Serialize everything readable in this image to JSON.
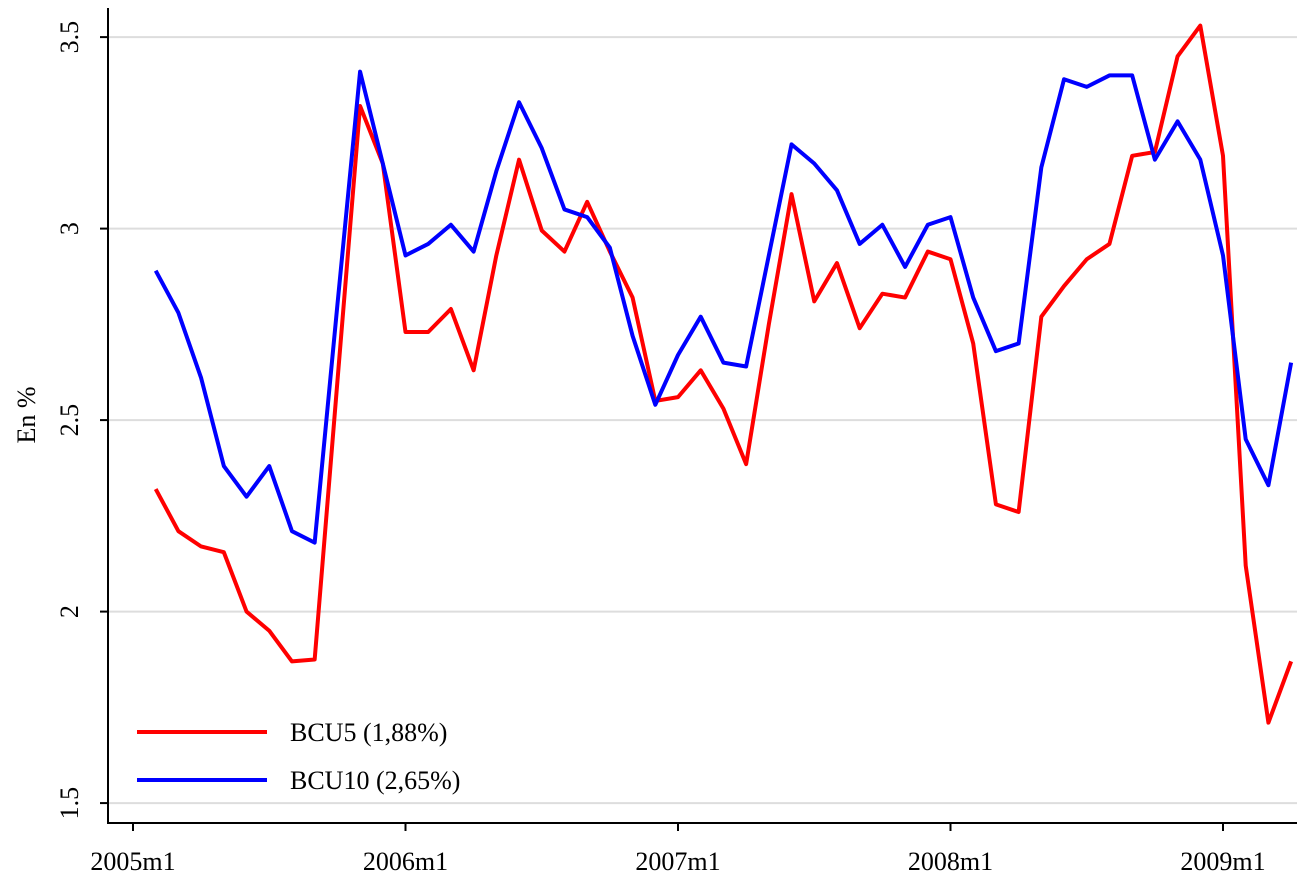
{
  "chart_data": {
    "type": "line",
    "ylabel": "En %",
    "x": [
      "2005m2",
      "2005m3",
      "2005m4",
      "2005m5",
      "2005m6",
      "2005m7",
      "2005m8",
      "2005m9",
      "2005m10",
      "2005m11",
      "2005m12",
      "2006m1",
      "2006m2",
      "2006m3",
      "2006m4",
      "2006m5",
      "2006m6",
      "2006m7",
      "2006m8",
      "2006m9",
      "2006m10",
      "2006m11",
      "2006m12",
      "2007m1",
      "2007m2",
      "2007m3",
      "2007m4",
      "2007m5",
      "2007m6",
      "2007m7",
      "2007m8",
      "2007m9",
      "2007m10",
      "2007m11",
      "2007m12",
      "2008m1",
      "2008m2",
      "2008m3",
      "2008m4",
      "2008m5",
      "2008m6",
      "2008m7",
      "2008m8",
      "2008m9",
      "2008m10",
      "2008m11",
      "2008m12",
      "2009m1",
      "2009m2",
      "2009m3",
      "2009m4"
    ],
    "series": [
      {
        "name": "BCU5 (1,88%)",
        "color": "#ff0000",
        "values": [
          2.32,
          2.21,
          2.17,
          2.155,
          2.0,
          1.95,
          1.87,
          1.875,
          2.6,
          3.32,
          3.17,
          2.73,
          2.73,
          2.79,
          2.63,
          2.93,
          3.18,
          2.995,
          2.94,
          3.07,
          2.94,
          2.82,
          2.55,
          2.56,
          2.63,
          2.53,
          2.385,
          2.75,
          3.09,
          2.81,
          2.91,
          2.74,
          2.83,
          2.82,
          2.94,
          2.92,
          2.7,
          2.28,
          2.26,
          2.77,
          2.85,
          2.92,
          2.96,
          3.19,
          3.2,
          3.45,
          3.53,
          3.19,
          2.12,
          1.71,
          1.87
        ]
      },
      {
        "name": "BCU10 (2,65%)",
        "color": "#0000ff",
        "values": [
          2.89,
          2.78,
          2.61,
          2.38,
          2.3,
          2.38,
          2.21,
          2.18,
          2.8,
          3.41,
          3.17,
          2.93,
          2.96,
          3.01,
          2.94,
          3.15,
          3.33,
          3.21,
          3.05,
          3.03,
          2.95,
          2.72,
          2.54,
          2.67,
          2.77,
          2.65,
          2.64,
          2.93,
          3.22,
          3.17,
          3.1,
          2.96,
          3.01,
          2.9,
          3.01,
          3.03,
          2.82,
          2.68,
          2.7,
          3.16,
          3.39,
          3.37,
          3.4,
          3.4,
          3.18,
          3.28,
          3.18,
          2.93,
          2.45,
          2.33,
          2.65
        ]
      }
    ],
    "xticks": [
      "2005m1",
      "2006m1",
      "2007m1",
      "2008m1",
      "2009m1"
    ],
    "ylim": [
      1.448,
      3.576
    ],
    "yticks": [
      1.5,
      2,
      2.5,
      3,
      3.5
    ],
    "grid": true,
    "legend": "lower left"
  }
}
